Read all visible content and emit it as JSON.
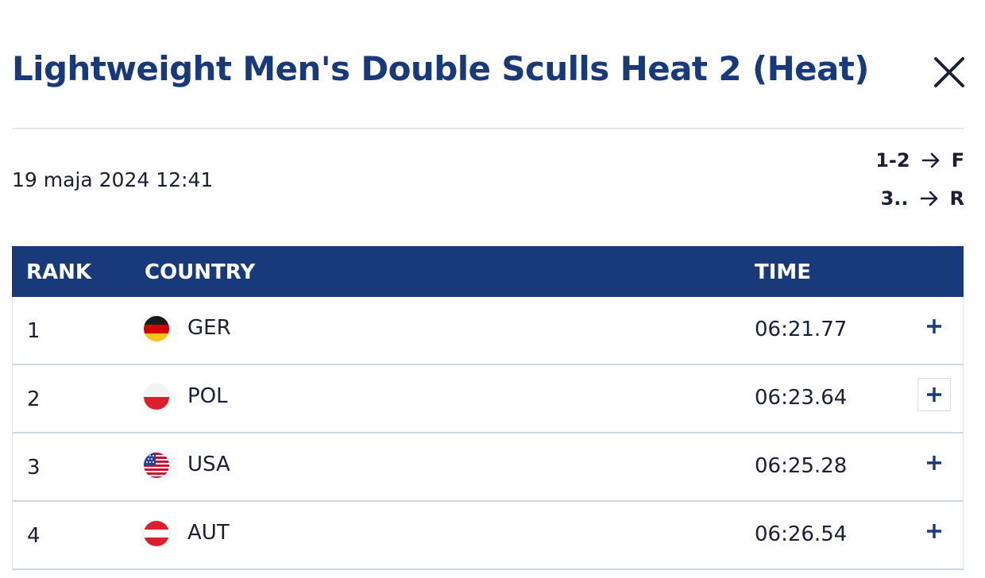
{
  "header": {
    "title": "Lightweight Men's Double Sculls Heat 2 (Heat)",
    "close_icon": "close-icon"
  },
  "info": {
    "date": "19 maja 2024 12:41",
    "progression": [
      {
        "ranks": "1-2",
        "arrow_icon": "arrow-right-icon",
        "target": "F"
      },
      {
        "ranks": "3..",
        "arrow_icon": "arrow-right-icon",
        "target": "R"
      }
    ]
  },
  "table": {
    "headers": {
      "rank": "RANK",
      "country": "COUNTRY",
      "time": "TIME"
    },
    "rows": [
      {
        "rank": "1",
        "country": "GER",
        "flag_icon": "germany-flag-icon",
        "time": "06:21.77",
        "expand_icon": "plus-icon"
      },
      {
        "rank": "2",
        "country": "POL",
        "flag_icon": "poland-flag-icon",
        "time": "06:23.64",
        "expand_icon": "plus-icon"
      },
      {
        "rank": "3",
        "country": "USA",
        "flag_icon": "usa-flag-icon",
        "time": "06:25.28",
        "expand_icon": "plus-icon"
      },
      {
        "rank": "4",
        "country": "AUT",
        "flag_icon": "austria-flag-icon",
        "time": "06:26.54",
        "expand_icon": "plus-icon"
      }
    ]
  },
  "colors": {
    "primary": "#183a7a",
    "text": "#1a1f36",
    "divider": "#e4e7ee",
    "row_border": "#cfd6e4"
  }
}
